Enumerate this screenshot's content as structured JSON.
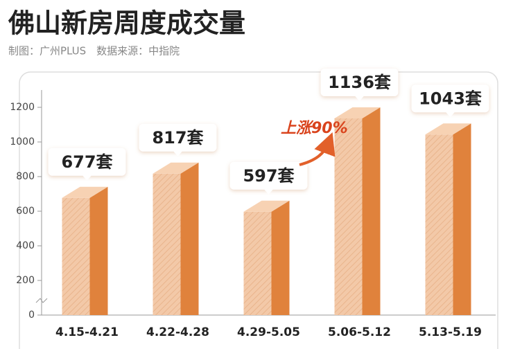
{
  "chart_data": {
    "type": "bar3d",
    "title": "佛山新房周度成交量",
    "subtitle": "制图：广州PLUS　数据来源：中指院",
    "categories": [
      "4.15-4.21",
      "4.22-4.28",
      "4.29-5.05",
      "5.06-5.12",
      "5.13-5.19"
    ],
    "values": [
      677,
      817,
      597,
      1136,
      1043
    ],
    "value_labels": [
      "677套",
      "817套",
      "597套",
      "1136套",
      "1043套"
    ],
    "color": "#e0823c",
    "ylim": [
      0,
      1300
    ],
    "yticks": [
      0,
      200,
      400,
      600,
      800,
      1000,
      1200
    ],
    "annotation": "上涨90%"
  }
}
